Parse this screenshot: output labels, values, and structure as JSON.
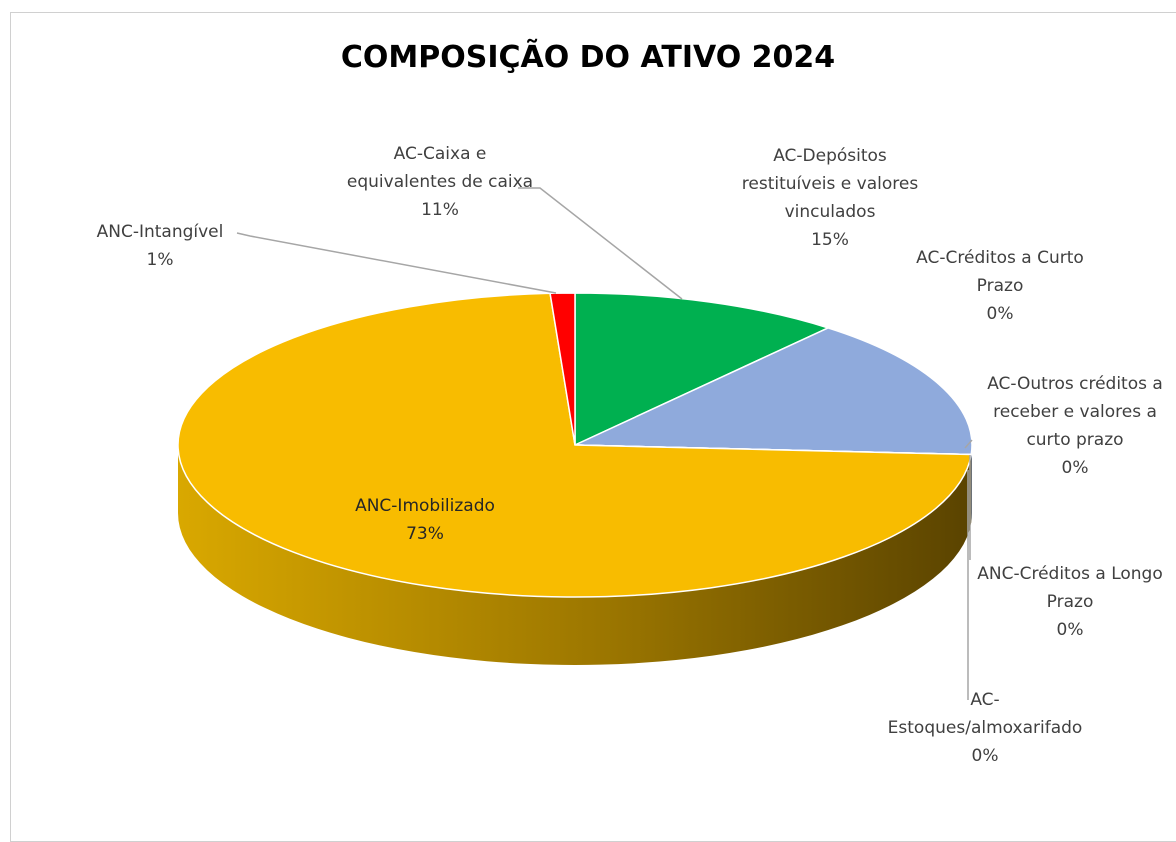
{
  "chart_data": {
    "type": "pie",
    "title": "COMPOSIÇÃO DO ATIVO 2024",
    "categories": [
      "AC-Caixa e equivalentes de caixa",
      "AC-Depósitos restituíveis e valores vinculados",
      "AC-Créditos a Curto Prazo",
      "AC-Outros créditos a receber e valores a curto prazo",
      "ANC-Créditos a Longo Prazo",
      "AC-Estoques/almoxarifado",
      "ANC-Imobilizado",
      "ANC-Intangível"
    ],
    "values": [
      11,
      15,
      0,
      0,
      0,
      0,
      73,
      1
    ],
    "value_labels": [
      "11%",
      "15%",
      "0%",
      "0%",
      "0%",
      "0%",
      "73%",
      "1%"
    ],
    "colors": [
      "#00b050",
      "#8faadc",
      "#7030a0",
      "#c00000",
      "#70ad47",
      "#4472c4",
      "#f8bc00",
      "#ff0000"
    ]
  }
}
